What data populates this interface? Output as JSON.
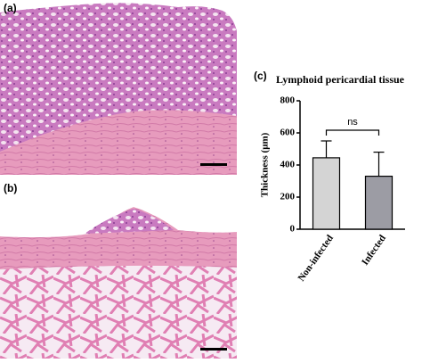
{
  "panels": [
    "(a)",
    "(b)",
    "(c)"
  ],
  "chart_data": {
    "type": "bar",
    "title": "Lymphoid pericardial tissue",
    "ylabel": "Thickness (μm)",
    "categories": [
      "Non-infected",
      "Infected"
    ],
    "values": [
      445,
      330
    ],
    "errors": [
      105,
      150
    ],
    "colors": [
      "#d4d4d4",
      "#9c9ca4"
    ],
    "annotation": "ns",
    "ylim": [
      0,
      800
    ],
    "yticks": [
      0,
      200,
      400,
      600,
      800
    ]
  }
}
